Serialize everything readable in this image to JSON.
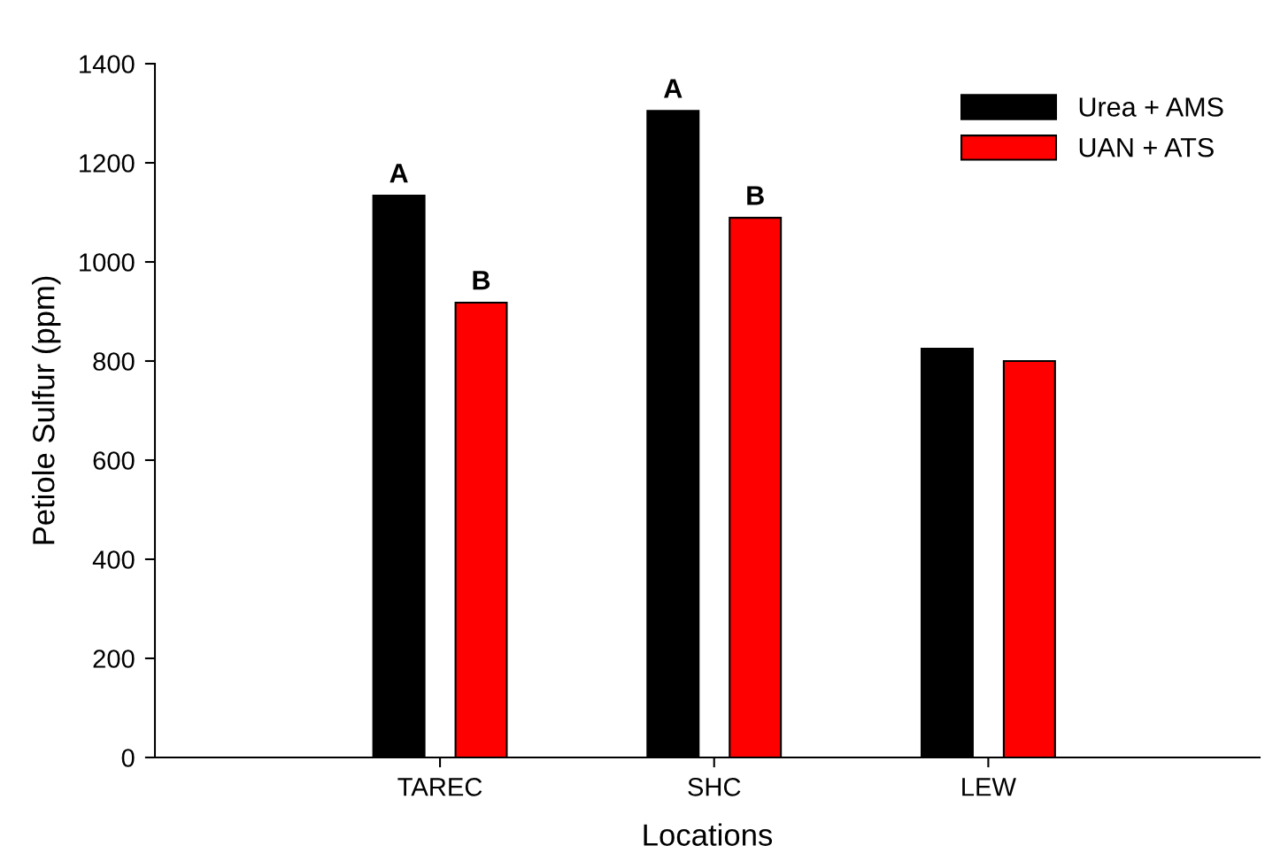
{
  "chart_data": {
    "type": "bar",
    "xlabel": "Locations",
    "ylabel": "Petiole Sulfur (ppm)",
    "categories": [
      "TAREC",
      "SHC",
      "LEW"
    ],
    "series": [
      {
        "name": "Urea + AMS",
        "color": "#000000",
        "values": [
          1134,
          1305,
          825
        ],
        "value_labels": [
          "A",
          "A",
          null
        ]
      },
      {
        "name": "UAN + ATS",
        "color": "#ff0000",
        "values": [
          918,
          1089,
          800
        ],
        "value_labels": [
          "B",
          "B",
          null
        ]
      }
    ],
    "ylim": [
      0,
      1400
    ],
    "yticks": [
      0,
      200,
      400,
      600,
      800,
      1000,
      1200,
      1400
    ],
    "grid": false,
    "legend": "top right"
  }
}
